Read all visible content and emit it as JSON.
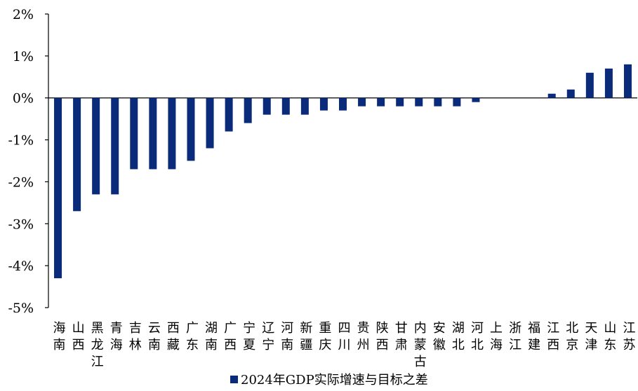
{
  "chart_data": {
    "type": "bar",
    "categories": [
      "海南",
      "山西",
      "黑龙江",
      "青海",
      "吉林",
      "云南",
      "西藏",
      "广东",
      "湖南",
      "广西",
      "宁夏",
      "辽宁",
      "河南",
      "新疆",
      "重庆",
      "四川",
      "贵州",
      "陕西",
      "甘肃",
      "内蒙古",
      "安徽",
      "湖北",
      "河北",
      "上海",
      "浙江",
      "福建",
      "江西",
      "北京",
      "天津",
      "山东",
      "江苏"
    ],
    "series": [
      {
        "name": "2024年GDP实际增速与目标之差",
        "color": "#0a2a7a",
        "values": [
          -4.3,
          -2.7,
          -2.3,
          -2.3,
          -1.7,
          -1.7,
          -1.7,
          -1.5,
          -1.2,
          -0.8,
          -0.6,
          -0.4,
          -0.4,
          -0.4,
          -0.3,
          -0.3,
          -0.2,
          -0.2,
          -0.2,
          -0.2,
          -0.2,
          -0.2,
          -0.1,
          0,
          0,
          0,
          0.1,
          0.2,
          0.6,
          0.7,
          0.8
        ]
      }
    ],
    "ylim": [
      -5,
      2
    ],
    "yticks": [
      2,
      1,
      0,
      -1,
      -2,
      -3,
      -4,
      -5
    ],
    "ytick_labels": [
      "2%",
      "1%",
      "0%",
      "-1%",
      "-2%",
      "-3%",
      "-4%",
      "-5%"
    ],
    "grid": false,
    "legend_position": "bottom-center"
  }
}
